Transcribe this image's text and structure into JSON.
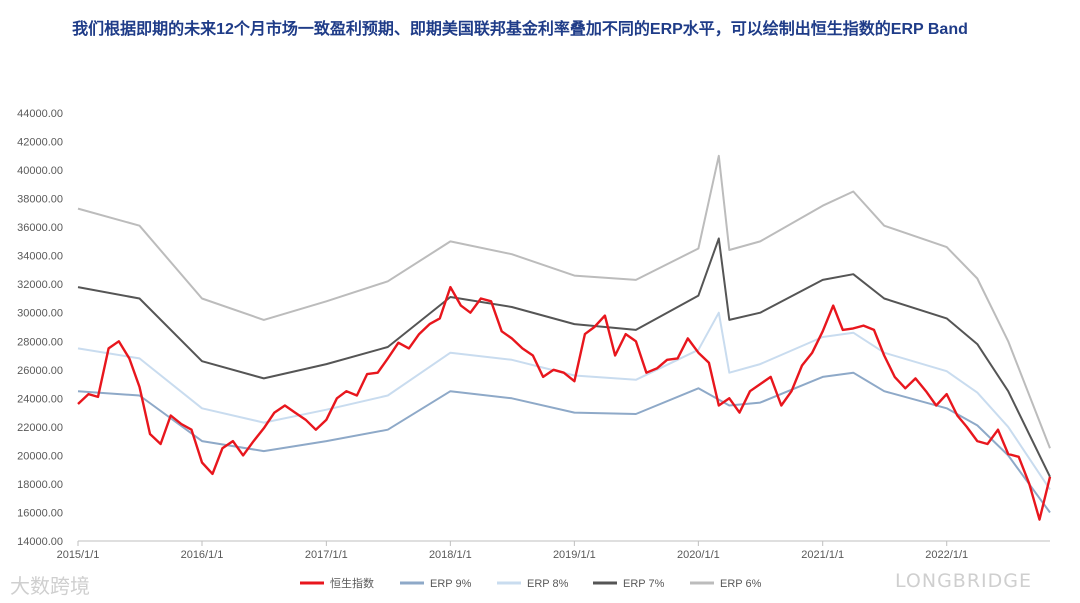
{
  "title": "我们根据即期的未来12个月市场一致盈利预期、即期美国联邦基金利率叠加不同的ERP水平，可以绘制出恒生指数的ERP Band",
  "watermarks": {
    "left": "大数跨境",
    "right": "LONGBRIDGE"
  },
  "chart_data": {
    "type": "line",
    "ylim": [
      14000,
      44000
    ],
    "yticks": [
      "14000.00",
      "16000.00",
      "18000.00",
      "20000.00",
      "22000.00",
      "24000.00",
      "26000.00",
      "28000.00",
      "30000.00",
      "32000.00",
      "34000.00",
      "36000.00",
      "38000.00",
      "40000.00",
      "42000.00",
      "44000.00"
    ],
    "xticks": [
      "2015/1/1",
      "2016/1/1",
      "2017/1/1",
      "2018/1/1",
      "2019/1/1",
      "2020/1/1",
      "2021/1/1",
      "2022/1/1"
    ],
    "xlim": [
      "2015/1/1",
      "2022/11/1"
    ],
    "legend_position": "bottom",
    "grid": false,
    "series": [
      {
        "name": "恒生指数",
        "color": "#e8161d",
        "x": [
          "2015/1/1",
          "2015/2/1",
          "2015/3/1",
          "2015/4/1",
          "2015/5/1",
          "2015/6/1",
          "2015/7/1",
          "2015/8/1",
          "2015/9/1",
          "2015/10/1",
          "2015/11/1",
          "2015/12/1",
          "2016/1/1",
          "2016/2/1",
          "2016/3/1",
          "2016/4/1",
          "2016/5/1",
          "2016/6/1",
          "2016/7/1",
          "2016/8/1",
          "2016/9/1",
          "2016/10/1",
          "2016/11/1",
          "2016/12/1",
          "2017/1/1",
          "2017/2/1",
          "2017/3/1",
          "2017/4/1",
          "2017/5/1",
          "2017/6/1",
          "2017/7/1",
          "2017/8/1",
          "2017/9/1",
          "2017/10/1",
          "2017/11/1",
          "2017/12/1",
          "2018/1/1",
          "2018/2/1",
          "2018/3/1",
          "2018/4/1",
          "2018/5/1",
          "2018/6/1",
          "2018/7/1",
          "2018/8/1",
          "2018/9/1",
          "2018/10/1",
          "2018/11/1",
          "2018/12/1",
          "2019/1/1",
          "2019/2/1",
          "2019/3/1",
          "2019/4/1",
          "2019/5/1",
          "2019/6/1",
          "2019/7/1",
          "2019/8/1",
          "2019/9/1",
          "2019/10/1",
          "2019/11/1",
          "2019/12/1",
          "2020/1/1",
          "2020/2/1",
          "2020/3/1",
          "2020/4/1",
          "2020/5/1",
          "2020/6/1",
          "2020/7/1",
          "2020/8/1",
          "2020/9/1",
          "2020/10/1",
          "2020/11/1",
          "2020/12/1",
          "2021/1/1",
          "2021/2/1",
          "2021/3/1",
          "2021/4/1",
          "2021/5/1",
          "2021/6/1",
          "2021/7/1",
          "2021/8/1",
          "2021/9/1",
          "2021/10/1",
          "2021/11/1",
          "2021/12/1",
          "2022/1/1",
          "2022/2/1",
          "2022/3/1",
          "2022/4/1",
          "2022/5/1",
          "2022/6/1",
          "2022/7/1",
          "2022/8/1",
          "2022/9/1",
          "2022/10/1",
          "2022/11/1"
        ],
        "values": [
          23600,
          24300,
          24100,
          27500,
          28000,
          26800,
          24800,
          21500,
          20800,
          22800,
          22200,
          21800,
          19500,
          18700,
          20500,
          21000,
          20000,
          21000,
          21900,
          23000,
          23500,
          23000,
          22500,
          21800,
          22500,
          24000,
          24500,
          24200,
          25700,
          25800,
          26800,
          27900,
          27500,
          28500,
          29200,
          29600,
          31800,
          30500,
          30000,
          31000,
          30800,
          28700,
          28200,
          27500,
          27000,
          25500,
          26000,
          25800,
          25200,
          28500,
          29000,
          29800,
          27000,
          28500,
          28000,
          25800,
          26100,
          26700,
          26800,
          28200,
          27200,
          26500,
          23500,
          24000,
          23000,
          24500,
          25000,
          25500,
          23500,
          24500,
          26300,
          27200,
          28700,
          30500,
          28800,
          28900,
          29100,
          28800,
          27000,
          25500,
          24700,
          25400,
          24500,
          23500,
          24300,
          22800,
          22000,
          21000,
          20800,
          21800,
          20100,
          19900,
          18000,
          15500,
          18500
        ]
      },
      {
        "name": "ERP 9%",
        "color": "#8ea9c8",
        "x": [
          "2015/1/1",
          "2015/7/1",
          "2016/1/1",
          "2016/7/1",
          "2017/1/1",
          "2017/7/1",
          "2018/1/1",
          "2018/7/1",
          "2019/1/1",
          "2019/7/1",
          "2020/1/1",
          "2020/4/1",
          "2020/7/1",
          "2021/1/1",
          "2021/4/1",
          "2021/7/1",
          "2022/1/1",
          "2022/4/1",
          "2022/7/1",
          "2022/11/1"
        ],
        "values": [
          24500,
          24200,
          21000,
          20300,
          21000,
          21800,
          24500,
          24000,
          23000,
          22900,
          24700,
          23500,
          23700,
          25500,
          25800,
          24500,
          23300,
          22100,
          20000,
          16000
        ]
      },
      {
        "name": "ERP 8%",
        "color": "#c9dcef",
        "x": [
          "2015/1/1",
          "2015/7/1",
          "2016/1/1",
          "2016/7/1",
          "2017/1/1",
          "2017/7/1",
          "2018/1/1",
          "2018/7/1",
          "2019/1/1",
          "2019/7/1",
          "2020/1/1",
          "2020/3/1",
          "2020/4/1",
          "2020/7/1",
          "2021/1/1",
          "2021/4/1",
          "2021/7/1",
          "2022/1/1",
          "2022/4/1",
          "2022/7/1",
          "2022/11/1"
        ],
        "values": [
          27500,
          26800,
          23300,
          22300,
          23200,
          24200,
          27200,
          26700,
          25600,
          25300,
          27400,
          30000,
          25800,
          26400,
          28300,
          28600,
          27200,
          25900,
          24400,
          22000,
          17600
        ]
      },
      {
        "name": "ERP 7%",
        "color": "#555555",
        "x": [
          "2015/1/1",
          "2015/7/1",
          "2016/1/1",
          "2016/7/1",
          "2017/1/1",
          "2017/7/1",
          "2018/1/1",
          "2018/7/1",
          "2019/1/1",
          "2019/7/1",
          "2020/1/1",
          "2020/3/1",
          "2020/4/1",
          "2020/7/1",
          "2021/1/1",
          "2021/4/1",
          "2021/7/1",
          "2022/1/1",
          "2022/4/1",
          "2022/7/1",
          "2022/11/1"
        ],
        "values": [
          31800,
          31000,
          26600,
          25400,
          26400,
          27600,
          31100,
          30400,
          29200,
          28800,
          31200,
          35200,
          29500,
          30000,
          32300,
          32700,
          31000,
          29600,
          27800,
          24500,
          18500
        ]
      },
      {
        "name": "ERP 6%",
        "color": "#bcbcbc",
        "x": [
          "2015/1/1",
          "2015/7/1",
          "2016/1/1",
          "2016/7/1",
          "2017/1/1",
          "2017/7/1",
          "2018/1/1",
          "2018/7/1",
          "2019/1/1",
          "2019/7/1",
          "2020/1/1",
          "2020/3/1",
          "2020/4/1",
          "2020/7/1",
          "2021/1/1",
          "2021/4/1",
          "2021/7/1",
          "2022/1/1",
          "2022/4/1",
          "2022/7/1",
          "2022/11/1"
        ],
        "values": [
          37300,
          36100,
          31000,
          29500,
          30800,
          32200,
          35000,
          34100,
          32600,
          32300,
          34500,
          41000,
          34400,
          35000,
          37500,
          38500,
          36100,
          34600,
          32400,
          28000,
          20500
        ]
      }
    ]
  }
}
